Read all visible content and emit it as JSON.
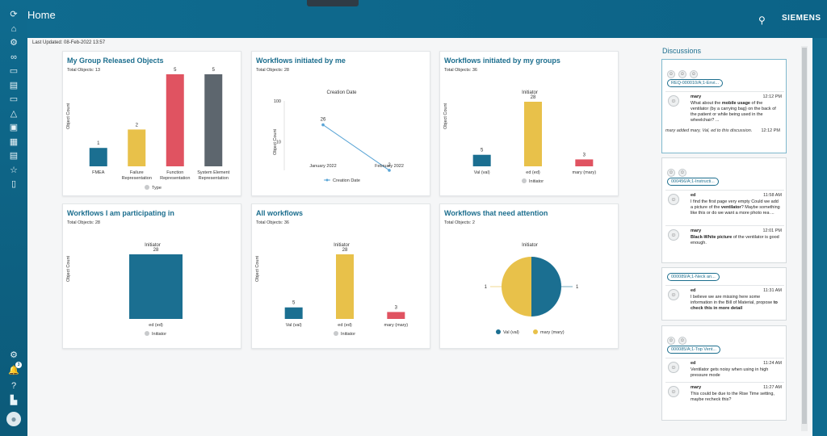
{
  "header": {
    "title": "Home",
    "search_icon": "search-icon",
    "brand": "SIEMENS"
  },
  "last_updated": "Last Updated: 08-Feb-2022 13:57",
  "sidebar": {
    "top_icons": [
      "refresh-icon",
      "home-icon",
      "settings-gear-icon",
      "link-icon",
      "folder-icon",
      "document-icon",
      "inbox-icon",
      "triangle-icon",
      "image-icon",
      "schedule-icon",
      "report-icon",
      "star-icon",
      "file-icon"
    ],
    "bottom_icons": [
      "settings-icon",
      "notifications-icon",
      "help-icon",
      "org-icon",
      "user-avatar-icon"
    ],
    "notification_count": "3"
  },
  "cards": [
    {
      "title": "My Group Released Objects",
      "subtitle": "Total Objects: 13",
      "chart_data": {
        "type": "bar",
        "ylabel": "Object Count",
        "categories": [
          "FMEA",
          "Failure\nRepresentation",
          "Function\nRepresentation",
          "System Element\nRepresentation"
        ],
        "values": [
          1,
          2,
          5,
          5
        ],
        "colors": [
          "#1b6f91",
          "#e8c14a",
          "#e05361",
          "#5d666e"
        ],
        "legend": "Type"
      }
    },
    {
      "title": "Workflows initiated by me",
      "subtitle": "Total Objects: 28",
      "chart_data": {
        "type": "line",
        "title": "Creation Date",
        "ylabel": "Object Count",
        "yscale": "log",
        "yticks": [
          10,
          100
        ],
        "categories": [
          "January 2022",
          "February 2022"
        ],
        "values": [
          26,
          2
        ],
        "color": "#5aa5d6",
        "legend": "Creation Date"
      }
    },
    {
      "title": "Workflows initiated by my groups",
      "subtitle": "Total Objects: 36",
      "chart_data": {
        "type": "bar",
        "title": "Initiator",
        "ylabel": "Object Count",
        "categories": [
          "Val (val)",
          "ed (ed)",
          "mary (mary)"
        ],
        "values": [
          5,
          28,
          3
        ],
        "colors": [
          "#1b6f91",
          "#e8c14a",
          "#e05361"
        ],
        "legend": "Initiator"
      }
    },
    {
      "title": "Workflows I am participating in",
      "subtitle": "Total Objects: 28",
      "chart_data": {
        "type": "bar",
        "title": "Initiator",
        "ylabel": "Object Count",
        "categories": [
          "ed (ed)"
        ],
        "values": [
          28
        ],
        "colors": [
          "#1b6f91"
        ],
        "legend": "Initiator"
      }
    },
    {
      "title": "All workflows",
      "subtitle": "Total Objects: 36",
      "chart_data": {
        "type": "bar",
        "title": "Initiator",
        "ylabel": "Object Count",
        "categories": [
          "Val (val)",
          "ed (ed)",
          "mary (mary)"
        ],
        "values": [
          5,
          28,
          3
        ],
        "colors": [
          "#1b6f91",
          "#e8c14a",
          "#e05361"
        ],
        "legend": "Initiator"
      }
    },
    {
      "title": "Workflows that need attention",
      "subtitle": "Total Objects: 2",
      "chart_data": {
        "type": "pie",
        "title": "Initiator",
        "categories": [
          "Val (val)",
          "mary (mary)"
        ],
        "values": [
          1,
          1
        ],
        "colors": [
          "#1b6f91",
          "#e8c14a"
        ]
      }
    }
  ],
  "discussions": {
    "title": "Discussions",
    "items": [
      {
        "chip": "REQ-000010/A;1-Envi...",
        "messages": [
          {
            "author": "mary",
            "time": "12:12 PM",
            "text_html": "What about the <b>mobile usage</b> of the ventilator (by a carrying bag) on the back of the patient or while being used in the wheelchair? ..."
          }
        ],
        "footer": "mary added mary, Val, ed to this discussion.",
        "footer_time": "12:12 PM"
      },
      {
        "chip": "000456/A;1-Instructi...",
        "messages": [
          {
            "author": "ed",
            "time": "11:58 AM",
            "text_html": "I find the first page very empty Could we add a picture of the <b>ventilator</b>? Maybe something like this or do we want a more photo rea ..."
          },
          {
            "author": "mary",
            "time": "12:01 PM",
            "text_html": "<b>Black-White picture</b> of the ventilator is good enough."
          }
        ]
      },
      {
        "chip": "000089/A;1-Neck an...",
        "messages": [
          {
            "author": "ed",
            "time": "11:31 AM",
            "text_html": "I believe we are missing here some information in the Bill of Material, propose <b>to check this in more detail</b>"
          }
        ]
      },
      {
        "chip": "000085/A;1-Top Vent...",
        "messages": [
          {
            "author": "ed",
            "time": "11:24 AM",
            "text_html": "Ventilator gets noisy when using in high pressure mode"
          },
          {
            "author": "mary",
            "time": "11:27 AM",
            "text_html": "This could be due to the Rise Time setting, maybe recheck this?"
          }
        ]
      }
    ]
  }
}
